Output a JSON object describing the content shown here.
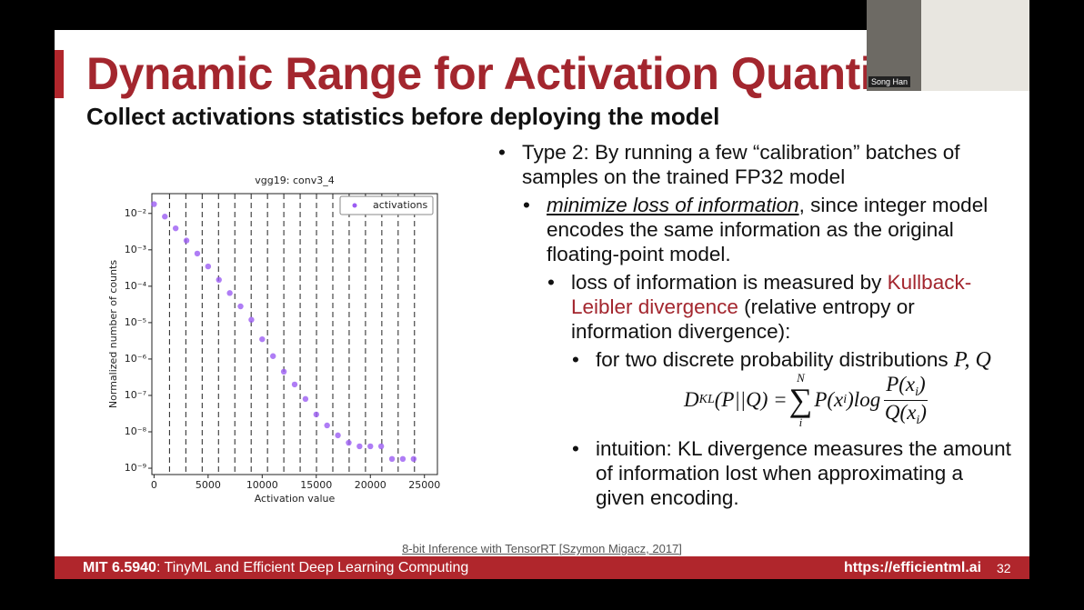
{
  "slide": {
    "title": "Dynamic Range for Activation Quantizat",
    "subtitle": "Collect activations statistics before deploying the model",
    "speaker": "Song Han",
    "chart": {
      "type": "scatter",
      "title": "vgg19: conv3_4",
      "xlabel": "Activation value",
      "ylabel": "Normalized number of counts",
      "x": [
        0,
        1000,
        2000,
        3000,
        4000,
        5000,
        6000,
        7000,
        8000,
        9000,
        10000,
        11000,
        12000,
        13000,
        14000,
        15000,
        16000,
        17000,
        18000,
        19000,
        20000,
        21000,
        22000,
        23000,
        24000
      ],
      "series": [
        {
          "name": "activations",
          "color": "#9b5cf2",
          "values": [
            0.018,
            0.0082,
            0.0039,
            0.0018,
            0.00079,
            0.00035,
            0.00015,
            6.5e-05,
            2.8e-05,
            1.2e-05,
            3.5e-06,
            1.2e-06,
            4.5e-07,
            2e-07,
            8e-08,
            3e-08,
            1.5e-08,
            8e-09,
            5e-09,
            4e-09,
            4e-09,
            4e-09,
            1.8e-09,
            1.8e-09,
            1.8e-09
          ]
        }
      ],
      "xlim": [
        -200,
        26200
      ],
      "ylim": [
        6.7e-10,
        0.035
      ],
      "ylog": true,
      "xticks": [
        0,
        5000,
        10000,
        15000,
        20000,
        25000
      ],
      "yticks": [
        {
          "value": 0.01,
          "label": "10⁻²"
        },
        {
          "value": 0.001,
          "label": "10⁻³"
        },
        {
          "value": 0.0001,
          "label": "10⁻⁴"
        },
        {
          "value": 1e-05,
          "label": "10⁻⁵"
        },
        {
          "value": 1e-06,
          "label": "10⁻⁶"
        },
        {
          "value": 1e-07,
          "label": "10⁻⁷"
        },
        {
          "value": 1e-08,
          "label": "10⁻⁸"
        },
        {
          "value": 1e-09,
          "label": "10⁻⁹"
        }
      ],
      "vlines": [
        1430,
        2940,
        4450,
        5960,
        7470,
        8980,
        10490,
        12000,
        13510,
        15020,
        16530,
        18040,
        19550,
        21060,
        22570,
        24080
      ],
      "legend": "upper right"
    },
    "bullets": [
      {
        "level": 1,
        "parts": [
          {
            "text": "Type 2: By running a few “calibration” batches of samples on the trained FP32 model"
          }
        ]
      },
      {
        "level": 2,
        "parts": [
          {
            "text": "minimize loss of information",
            "style": "emph"
          },
          {
            "text": ", since integer model encodes the same information as the original floating-point model."
          }
        ]
      },
      {
        "level": 3,
        "parts": [
          {
            "text": "loss of information is measured by "
          },
          {
            "text": "Kullback-Leibler divergence",
            "style": "red"
          },
          {
            "text": " (relative entropy or information divergence):"
          }
        ]
      },
      {
        "level": 4,
        "parts": [
          {
            "text": "for two discrete probability distributions "
          },
          {
            "text": "P, Q",
            "style": "math"
          }
        ]
      },
      {
        "level": 4,
        "parts": [
          {
            "text": "intuition: KL divergence measures the amount of information lost when approximating a given encoding."
          }
        ]
      }
    ],
    "formula": {
      "lhs": "D",
      "lhs_sub": "KL",
      "lhs_rest": "(P||Q) =",
      "sum": "∑",
      "sum_top": "N",
      "sum_bottom": "i",
      "term": "P(x",
      "term_sub": "i",
      "term_rest": ")log",
      "num": "P(x",
      "num_sub": "i",
      "num_rest": ")",
      "den": "Q(x",
      "den_sub": "i",
      "den_rest": ")"
    },
    "citation": "8-bit Inference with TensorRT [Szymon Migacz, 2017]",
    "footer": {
      "course": "MIT 6.5940",
      "course_rest": ": TinyML and Efficient Deep Learning Computing",
      "url": "https://efficientml.ai",
      "page": "32"
    }
  }
}
